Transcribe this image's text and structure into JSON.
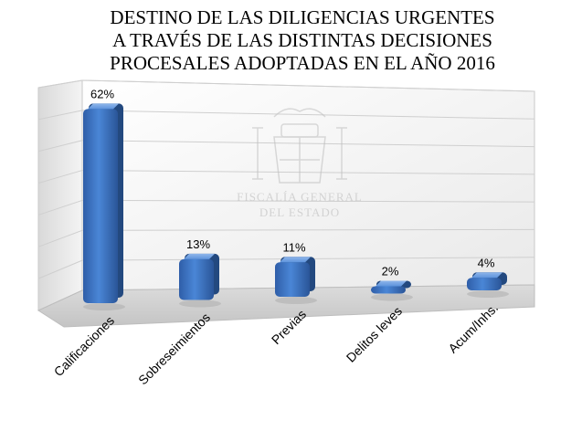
{
  "chart_data": {
    "type": "bar",
    "title_lines": [
      "DESTINO DE LAS DILIGENCIAS URGENTES",
      "A TRAVÉS DE LAS DISTINTAS DECISIONES",
      "PROCESALES ADOPTADAS EN EL AÑO 2016"
    ],
    "categories": [
      "Calificaciones",
      "Sobreseimientos",
      "Previas",
      "Delitos leves",
      "Acum/Inhs."
    ],
    "values": [
      62,
      13,
      11,
      2,
      4
    ],
    "data_labels": [
      "62%",
      "13%",
      "11%",
      "2%",
      "4%"
    ],
    "ylim": [
      0,
      70
    ],
    "grid": true,
    "bar_color": "#3a6ebd"
  },
  "watermark": {
    "line1": "FISCALÍA GENERAL",
    "line2": "DEL ESTADO"
  }
}
